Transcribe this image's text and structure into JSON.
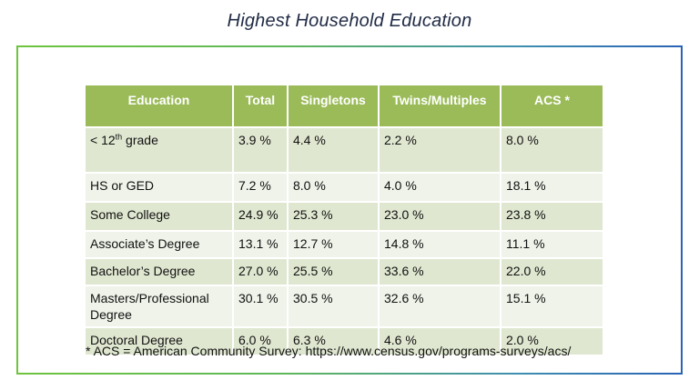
{
  "title": "Highest Household Education",
  "table": {
    "headers": [
      "Education",
      "Total",
      "Singletons",
      "Twins/Multiples",
      "ACS *"
    ],
    "rows": [
      {
        "education": "< 12",
        "sup": "th",
        "suffix": " grade",
        "total": "3.9 %",
        "singletons": "4.4 %",
        "twins": "2.2 %",
        "acs": "8.0 %"
      },
      {
        "education": "HS or GED",
        "total": "7.2 %",
        "singletons": "8.0 %",
        "twins": "4.0 %",
        "acs": "18.1 %"
      },
      {
        "education": "Some College",
        "total": "24.9 %",
        "singletons": "25.3 %",
        "twins": "23.0 %",
        "acs": "23.8 %"
      },
      {
        "education": "Associate’s Degree",
        "total": "13.1 %",
        "singletons": "12.7 %",
        "twins": "14.8 %",
        "acs": "11.1 %"
      },
      {
        "education": "Bachelor’s Degree",
        "total": "27.0 %",
        "singletons": "25.5 %",
        "twins": "33.6 %",
        "acs": "22.0 %"
      },
      {
        "education": "Masters/Professional Degree",
        "total": "30.1 %",
        "singletons": "30.5 %",
        "twins": "32.6 %",
        "acs": "15.1 %"
      },
      {
        "education": "Doctoral Degree",
        "total": "6.0 %",
        "singletons": "6.3 %",
        "twins": "4.6 %",
        "acs": "2.0 %"
      }
    ]
  },
  "footnote": "* ACS = American Community Survey: https://www.census.gov/programs-surveys/acs/",
  "colors": {
    "header_bg": "#9bbb59",
    "row_dark": "#dfe7d0",
    "row_light": "#eff3e9",
    "frame_left": "#6ec43f",
    "frame_right": "#2a63b5"
  }
}
